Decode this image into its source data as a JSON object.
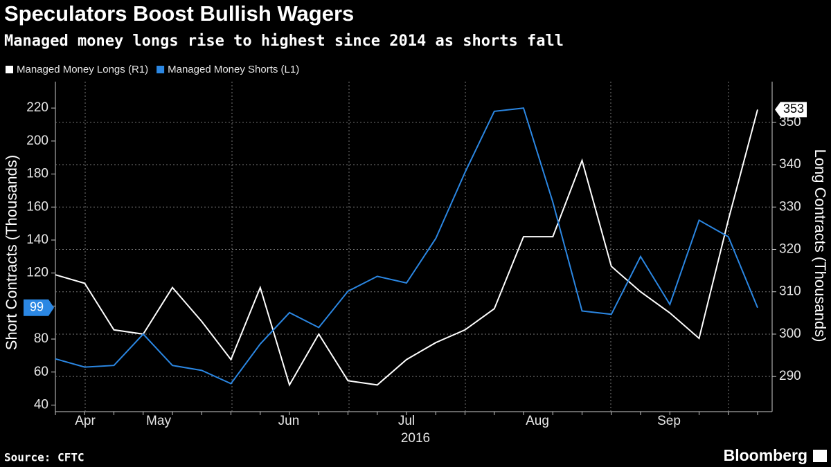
{
  "chart_data": {
    "type": "line",
    "title": "Speculators Boost Bullish Wagers",
    "subtitle": "Managed money longs rise to highest since 2014 as shorts fall",
    "source": "Source: CFTC",
    "brand": "Bloomberg",
    "y_label": "Short Contracts (Thousands)",
    "y2_label": "Long Contracts (Thousands)",
    "categories": [
      null,
      null,
      null,
      null,
      null,
      null,
      null,
      null,
      null,
      null,
      null,
      null,
      null,
      null,
      null,
      null,
      null,
      null,
      null,
      null,
      null,
      null,
      null,
      null,
      null
    ],
    "x_labels": [
      "Apr",
      "May",
      "Jun",
      "Jul",
      "Aug",
      "Sep"
    ],
    "x_year": "2016",
    "series": [
      {
        "name": "Managed Money Longs (R1)",
        "color": "#ffffff",
        "axis": "y2",
        "values": [
          314,
          312,
          301,
          300,
          311,
          303,
          294,
          311,
          288,
          300,
          289,
          288,
          294,
          298,
          301,
          306,
          323,
          323,
          341,
          316,
          310,
          305,
          299,
          327,
          353
        ]
      },
      {
        "name": "Managed Money Shorts (L1)",
        "color": "#2b87e3",
        "values": [
          68,
          63,
          64,
          83,
          64,
          61,
          53,
          77,
          96,
          87,
          109,
          118,
          114,
          141,
          181,
          218,
          220,
          163,
          97,
          95,
          130,
          101,
          152,
          142,
          99
        ]
      }
    ],
    "ylim": [
      36,
      236
    ],
    "yticks": [
      40,
      60,
      80,
      100,
      120,
      140,
      160,
      180,
      200,
      220
    ],
    "y2lim": [
      281.7,
      359.6
    ],
    "y2ticks": [
      290,
      300,
      310,
      320,
      330,
      340,
      350
    ],
    "grid": true
  }
}
